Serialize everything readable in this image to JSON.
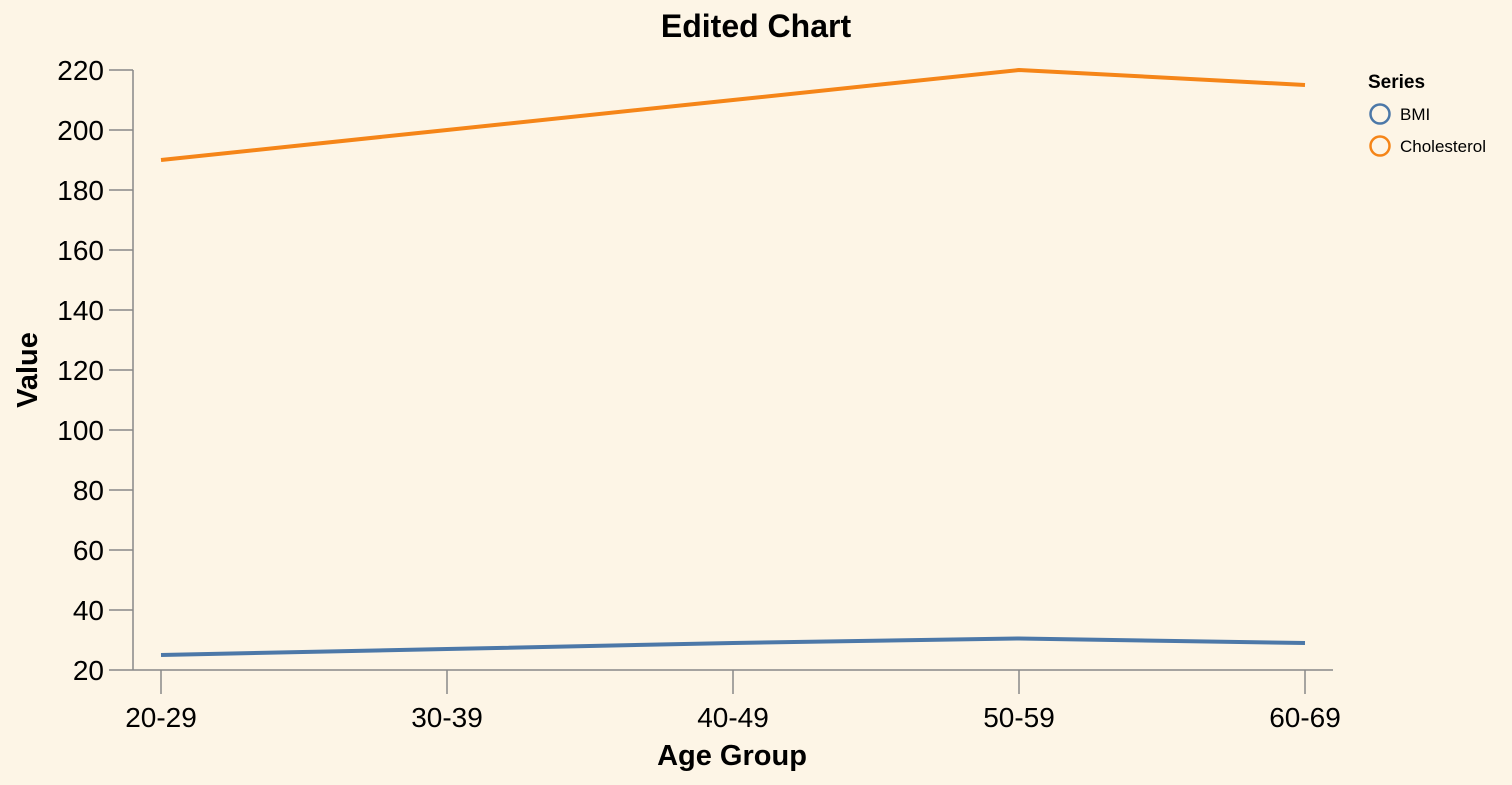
{
  "chart_data": {
    "type": "line",
    "title": "Edited Chart",
    "xlabel": "Age Group",
    "ylabel": "Value",
    "categories": [
      "20-29",
      "30-39",
      "40-49",
      "50-59",
      "60-69"
    ],
    "ylim": [
      20,
      220
    ],
    "yticks": [
      20,
      40,
      60,
      80,
      100,
      120,
      140,
      160,
      180,
      200,
      220
    ],
    "grid": false,
    "legend_title": "Series",
    "legend_position": "top-right",
    "series": [
      {
        "name": "BMI",
        "color": "#4c78a8",
        "values": [
          25,
          27,
          29,
          30.5,
          29
        ]
      },
      {
        "name": "Cholesterol",
        "color": "#f58518",
        "values": [
          190,
          200,
          210,
          220,
          215
        ]
      }
    ]
  }
}
